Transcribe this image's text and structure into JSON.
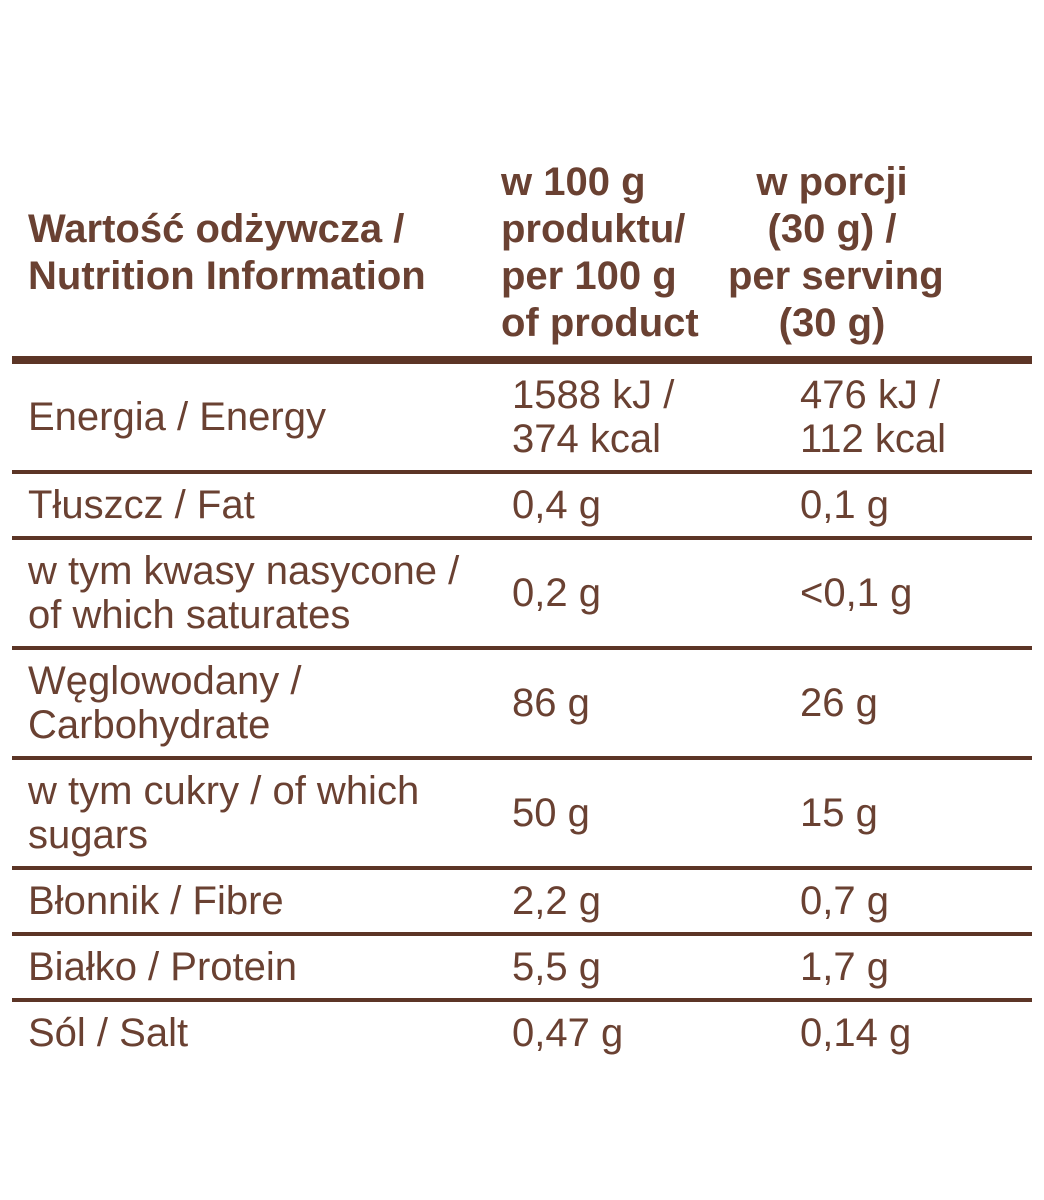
{
  "colors": {
    "text": "#6A4132",
    "rule": "#5C3526",
    "background": "#FFFFFF"
  },
  "table": {
    "header": {
      "col1": "Wartość odżywcza /\nNutrition Information",
      "col2": "w 100 g\nproduktu/\nper 100 g\nof product",
      "col3": "w porcji\n(30 g) /\nper serving\n(30 g)"
    },
    "rows": [
      {
        "label": "Energia / Energy",
        "per_100g": "1588 kJ /\n374 kcal",
        "per_serving": "476 kJ /\n112 kcal"
      },
      {
        "label": "Tłuszcz / Fat",
        "per_100g": "0,4 g",
        "per_serving": "0,1 g"
      },
      {
        "label": "w tym kwasy nasycone /\nof which saturates",
        "per_100g": "0,2 g",
        "per_serving": "<0,1 g"
      },
      {
        "label": "Węglowodany /\nCarbohydrate",
        "per_100g": "86 g",
        "per_serving": "26 g"
      },
      {
        "label": "w tym cukry / of which\nsugars",
        "per_100g": "50 g",
        "per_serving": "15 g"
      },
      {
        "label": "Błonnik / Fibre",
        "per_100g": "2,2 g",
        "per_serving": "0,7 g"
      },
      {
        "label": "Białko / Protein",
        "per_100g": "5,5 g",
        "per_serving": "1,7 g"
      },
      {
        "label": "Sól / Salt",
        "per_100g": "0,47 g",
        "per_serving": "0,14 g"
      }
    ]
  }
}
